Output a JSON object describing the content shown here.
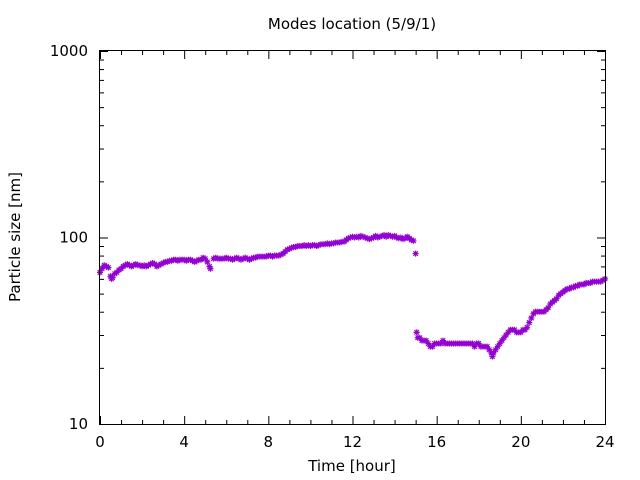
{
  "chart_data": {
    "type": "scatter",
    "title": "Modes location (5/9/1)",
    "xlabel": "Time [hour]",
    "ylabel": "Particle size [nm]",
    "xlim": [
      0,
      24
    ],
    "ylim": [
      10,
      1000
    ],
    "yscale": "log",
    "xticks": [
      0,
      4,
      8,
      12,
      16,
      20,
      24
    ],
    "xtick_labels": [
      "0",
      "4",
      "8",
      "12",
      "16",
      "20",
      "24"
    ],
    "yticks": [
      10,
      100,
      1000
    ],
    "ytick_labels": [
      "10",
      "100",
      "1000"
    ],
    "grid": false,
    "legend": "none",
    "marker": "star",
    "colors": {
      "series": "#9400d3",
      "axis": "#000000",
      "background": "#ffffff"
    },
    "series": [
      {
        "points": [
          [
            0.0,
            65
          ],
          [
            0.1,
            68
          ],
          [
            0.2,
            71
          ],
          [
            0.3,
            70
          ],
          [
            0.4,
            69
          ],
          [
            0.5,
            62
          ],
          [
            0.55,
            60
          ],
          [
            0.6,
            61
          ],
          [
            0.7,
            64
          ],
          [
            0.8,
            65
          ],
          [
            0.9,
            67
          ],
          [
            1.0,
            68
          ],
          [
            1.1,
            70
          ],
          [
            1.2,
            71
          ],
          [
            1.3,
            72
          ],
          [
            1.4,
            71
          ],
          [
            1.5,
            70
          ],
          [
            1.6,
            71
          ],
          [
            1.7,
            72
          ],
          [
            1.8,
            71
          ],
          [
            1.9,
            71
          ],
          [
            2.0,
            70
          ],
          [
            2.1,
            71
          ],
          [
            2.2,
            70
          ],
          [
            2.3,
            71
          ],
          [
            2.4,
            72
          ],
          [
            2.5,
            73
          ],
          [
            2.6,
            72
          ],
          [
            2.7,
            70
          ],
          [
            2.8,
            71
          ],
          [
            2.9,
            72
          ],
          [
            3.0,
            73
          ],
          [
            3.1,
            74
          ],
          [
            3.2,
            74
          ],
          [
            3.3,
            75
          ],
          [
            3.4,
            75
          ],
          [
            3.5,
            76
          ],
          [
            3.6,
            76
          ],
          [
            3.7,
            75
          ],
          [
            3.8,
            76
          ],
          [
            3.9,
            76
          ],
          [
            4.0,
            76
          ],
          [
            4.1,
            75
          ],
          [
            4.2,
            76
          ],
          [
            4.3,
            76
          ],
          [
            4.4,
            75
          ],
          [
            4.5,
            74
          ],
          [
            4.6,
            75
          ],
          [
            4.7,
            76
          ],
          [
            4.8,
            76
          ],
          [
            4.9,
            78
          ],
          [
            5.0,
            77
          ],
          [
            5.1,
            74
          ],
          [
            5.2,
            70
          ],
          [
            5.25,
            68
          ],
          [
            5.4,
            77
          ],
          [
            5.5,
            78
          ],
          [
            5.6,
            77
          ],
          [
            5.7,
            77
          ],
          [
            5.8,
            77
          ],
          [
            5.9,
            77
          ],
          [
            6.0,
            78
          ],
          [
            6.1,
            77
          ],
          [
            6.2,
            77
          ],
          [
            6.3,
            76
          ],
          [
            6.4,
            77
          ],
          [
            6.5,
            78
          ],
          [
            6.6,
            77
          ],
          [
            6.7,
            76
          ],
          [
            6.8,
            77
          ],
          [
            6.9,
            78
          ],
          [
            7.0,
            77
          ],
          [
            7.1,
            76
          ],
          [
            7.2,
            77
          ],
          [
            7.3,
            78
          ],
          [
            7.4,
            78
          ],
          [
            7.5,
            79
          ],
          [
            7.6,
            79
          ],
          [
            7.7,
            79
          ],
          [
            7.8,
            79
          ],
          [
            7.9,
            79
          ],
          [
            8.0,
            80
          ],
          [
            8.1,
            80
          ],
          [
            8.2,
            79
          ],
          [
            8.3,
            80
          ],
          [
            8.4,
            80
          ],
          [
            8.5,
            80
          ],
          [
            8.6,
            81
          ],
          [
            8.7,
            82
          ],
          [
            8.8,
            84
          ],
          [
            8.9,
            86
          ],
          [
            9.0,
            87
          ],
          [
            9.1,
            88
          ],
          [
            9.2,
            89
          ],
          [
            9.3,
            89
          ],
          [
            9.4,
            90
          ],
          [
            9.5,
            90
          ],
          [
            9.6,
            90
          ],
          [
            9.7,
            91
          ],
          [
            9.8,
            90
          ],
          [
            9.9,
            91
          ],
          [
            10.0,
            90
          ],
          [
            10.1,
            91
          ],
          [
            10.2,
            91
          ],
          [
            10.3,
            90
          ],
          [
            10.4,
            91
          ],
          [
            10.5,
            92
          ],
          [
            10.6,
            92
          ],
          [
            10.7,
            92
          ],
          [
            10.8,
            93
          ],
          [
            10.9,
            92
          ],
          [
            11.0,
            93
          ],
          [
            11.1,
            93
          ],
          [
            11.2,
            94
          ],
          [
            11.3,
            94
          ],
          [
            11.4,
            94
          ],
          [
            11.5,
            95
          ],
          [
            11.6,
            95
          ],
          [
            11.7,
            97
          ],
          [
            11.8,
            99
          ],
          [
            11.9,
            100
          ],
          [
            12.0,
            101
          ],
          [
            12.1,
            100
          ],
          [
            12.2,
            101
          ],
          [
            12.3,
            100
          ],
          [
            12.4,
            102
          ],
          [
            12.5,
            101
          ],
          [
            12.6,
            100
          ],
          [
            12.7,
            99
          ],
          [
            12.8,
            98
          ],
          [
            12.9,
            99
          ],
          [
            13.0,
            100
          ],
          [
            13.1,
            102
          ],
          [
            13.2,
            100
          ],
          [
            13.3,
            101
          ],
          [
            13.4,
            102
          ],
          [
            13.5,
            103
          ],
          [
            13.6,
            101
          ],
          [
            13.7,
            103
          ],
          [
            13.8,
            102
          ],
          [
            13.9,
            101
          ],
          [
            14.0,
            102
          ],
          [
            14.1,
            100
          ],
          [
            14.2,
            99
          ],
          [
            14.3,
            100
          ],
          [
            14.4,
            98
          ],
          [
            14.5,
            99
          ],
          [
            14.6,
            101
          ],
          [
            14.7,
            99
          ],
          [
            14.8,
            97
          ],
          [
            14.9,
            96
          ],
          [
            15.0,
            82
          ],
          [
            15.05,
            31
          ],
          [
            15.1,
            29
          ],
          [
            15.2,
            29
          ],
          [
            15.3,
            28
          ],
          [
            15.4,
            28
          ],
          [
            15.5,
            28
          ],
          [
            15.6,
            27
          ],
          [
            15.7,
            26
          ],
          [
            15.8,
            26
          ],
          [
            15.9,
            27
          ],
          [
            16.0,
            27
          ],
          [
            16.1,
            27
          ],
          [
            16.2,
            27
          ],
          [
            16.3,
            28
          ],
          [
            16.4,
            27
          ],
          [
            16.5,
            27
          ],
          [
            16.6,
            27
          ],
          [
            16.7,
            27
          ],
          [
            16.8,
            27
          ],
          [
            16.9,
            27
          ],
          [
            17.0,
            27
          ],
          [
            17.1,
            27
          ],
          [
            17.2,
            27
          ],
          [
            17.3,
            27
          ],
          [
            17.4,
            27
          ],
          [
            17.5,
            27
          ],
          [
            17.6,
            27
          ],
          [
            17.7,
            27
          ],
          [
            17.8,
            26
          ],
          [
            17.9,
            27
          ],
          [
            18.0,
            27
          ],
          [
            18.1,
            26
          ],
          [
            18.2,
            26
          ],
          [
            18.3,
            26
          ],
          [
            18.4,
            26
          ],
          [
            18.5,
            25
          ],
          [
            18.6,
            24
          ],
          [
            18.65,
            23
          ],
          [
            18.7,
            24
          ],
          [
            18.8,
            25
          ],
          [
            18.9,
            26
          ],
          [
            19.0,
            27
          ],
          [
            19.1,
            28
          ],
          [
            19.2,
            29
          ],
          [
            19.3,
            30
          ],
          [
            19.4,
            31
          ],
          [
            19.5,
            32
          ],
          [
            19.6,
            32
          ],
          [
            19.7,
            32
          ],
          [
            19.8,
            31
          ],
          [
            19.9,
            31
          ],
          [
            20.0,
            31
          ],
          [
            20.1,
            32
          ],
          [
            20.2,
            32
          ],
          [
            20.3,
            33
          ],
          [
            20.4,
            35
          ],
          [
            20.5,
            37
          ],
          [
            20.6,
            39
          ],
          [
            20.7,
            40
          ],
          [
            20.8,
            40
          ],
          [
            20.9,
            40
          ],
          [
            21.0,
            40
          ],
          [
            21.1,
            40
          ],
          [
            21.2,
            41
          ],
          [
            21.3,
            42
          ],
          [
            21.4,
            44
          ],
          [
            21.5,
            45
          ],
          [
            21.6,
            46
          ],
          [
            21.7,
            47
          ],
          [
            21.8,
            49
          ],
          [
            21.9,
            50
          ],
          [
            22.0,
            51
          ],
          [
            22.1,
            52
          ],
          [
            22.2,
            53
          ],
          [
            22.3,
            53
          ],
          [
            22.4,
            54
          ],
          [
            22.5,
            54
          ],
          [
            22.6,
            55
          ],
          [
            22.7,
            55
          ],
          [
            22.8,
            56
          ],
          [
            22.9,
            56
          ],
          [
            23.0,
            56
          ],
          [
            23.1,
            57
          ],
          [
            23.2,
            57
          ],
          [
            23.3,
            57
          ],
          [
            23.4,
            58
          ],
          [
            23.5,
            58
          ],
          [
            23.6,
            58
          ],
          [
            23.7,
            58
          ],
          [
            23.8,
            58
          ],
          [
            23.9,
            59
          ],
          [
            24.0,
            60
          ]
        ]
      }
    ]
  }
}
